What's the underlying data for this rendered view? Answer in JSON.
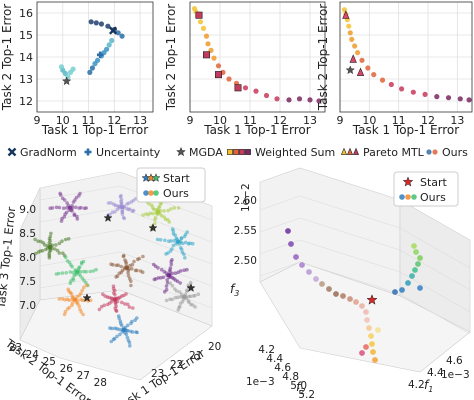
{
  "chart_data": [
    {
      "type": "scatter",
      "panel": "top-left",
      "xlabel": "Task 1 Top-1 Error",
      "ylabel": "Task 2 Top-1 Error",
      "xlim": [
        9,
        13.5
      ],
      "ylim": [
        11.5,
        16.5
      ],
      "xticks": [
        9,
        10,
        11,
        12,
        13
      ],
      "yticks": [
        12,
        13,
        14,
        15,
        16
      ],
      "grid": true,
      "series": [
        {
          "name": "GradNorm",
          "marker": "x",
          "color": "#17365c",
          "points": [
            [
              11.95,
              15.2
            ]
          ]
        },
        {
          "name": "Uncertainty",
          "marker": "plus",
          "color": "#2f6fa8",
          "points": [
            [
              11.45,
              14.1
            ]
          ]
        },
        {
          "name": "MGDA",
          "marker": "star",
          "color": "#555555",
          "points": [
            [
              10.15,
              12.9
            ]
          ]
        },
        {
          "name": "Ours",
          "marker": "circle",
          "colors": [
            "#1f3f6e",
            "#2a6fa6",
            "#3a93c7",
            "#58b6c8",
            "#76cfcf"
          ],
          "points": [
            [
              11.1,
              15.6
            ],
            [
              11.3,
              15.55
            ],
            [
              11.5,
              15.5
            ],
            [
              11.75,
              15.4
            ],
            [
              12.0,
              15.25
            ],
            [
              12.15,
              15.1
            ],
            [
              12.3,
              14.95
            ],
            [
              11.05,
              13.3
            ],
            [
              11.15,
              13.5
            ],
            [
              11.25,
              13.7
            ],
            [
              11.35,
              13.85
            ],
            [
              11.5,
              14.05
            ],
            [
              11.6,
              14.2
            ],
            [
              11.7,
              14.35
            ],
            [
              11.8,
              14.55
            ],
            [
              11.9,
              14.75
            ],
            [
              10.0,
              13.4
            ],
            [
              10.1,
              13.25
            ],
            [
              10.2,
              13.1
            ],
            [
              10.3,
              13.3
            ],
            [
              10.4,
              13.45
            ],
            [
              9.95,
              13.55
            ]
          ]
        }
      ]
    },
    {
      "type": "scatter",
      "panel": "top-middle",
      "xlabel": "Task 1 Top-1 Error",
      "xlim": [
        9,
        13.5
      ],
      "ylim": [
        11.5,
        16.5
      ],
      "xticks": [
        9,
        10,
        11,
        12,
        13
      ],
      "grid": true,
      "series": [
        {
          "name": "Weighted Sum",
          "marker": "square",
          "color": "#c23a5e",
          "points": [
            [
              9.3,
              15.9
            ],
            [
              9.55,
              14.1
            ],
            [
              9.95,
              13.2
            ],
            [
              10.6,
              12.6
            ]
          ]
        },
        {
          "name": "Ours",
          "marker": "circle",
          "colors": [
            "#f2c230",
            "#ef9a2a",
            "#e0633a",
            "#c83a5a",
            "#7a2860"
          ],
          "points": [
            [
              9.15,
              16.2
            ],
            [
              9.2,
              16.05
            ],
            [
              9.25,
              15.85
            ],
            [
              9.35,
              15.6
            ],
            [
              9.45,
              15.3
            ],
            [
              9.55,
              14.95
            ],
            [
              9.6,
              14.6
            ],
            [
              9.7,
              14.3
            ],
            [
              9.8,
              13.95
            ],
            [
              9.95,
              13.6
            ],
            [
              10.1,
              13.3
            ],
            [
              10.3,
              13.0
            ],
            [
              10.55,
              12.8
            ],
            [
              10.85,
              12.6
            ],
            [
              11.2,
              12.45
            ],
            [
              11.55,
              12.25
            ],
            [
              11.9,
              12.1
            ],
            [
              12.3,
              12.05
            ],
            [
              12.65,
              12.1
            ],
            [
              13.0,
              12.05
            ],
            [
              13.3,
              12.0
            ]
          ]
        }
      ]
    },
    {
      "type": "scatter",
      "panel": "top-right",
      "xlabel": "Task 1 Top-1 Error",
      "xlim": [
        9,
        13.5
      ],
      "ylim": [
        11.5,
        16.5
      ],
      "xticks": [
        9,
        10,
        11,
        12,
        13
      ],
      "grid": true,
      "series": [
        {
          "name": "Pareto MTL",
          "marker": "triangle",
          "color": "#e0446a",
          "points": [
            [
              9.2,
              15.9
            ],
            [
              9.45,
              13.9
            ],
            [
              9.7,
              13.3
            ]
          ]
        },
        {
          "name": "MGDA",
          "marker": "star",
          "color": "#555555",
          "points": [
            [
              9.35,
              13.4
            ]
          ]
        },
        {
          "name": "Ours",
          "marker": "circle",
          "colors": [
            "#f2c230",
            "#ef9a2a",
            "#e0633a",
            "#c83a5a",
            "#7a2860"
          ],
          "points": [
            [
              9.15,
              16.15
            ],
            [
              9.2,
              15.95
            ],
            [
              9.25,
              15.7
            ],
            [
              9.3,
              15.4
            ],
            [
              9.35,
              15.1
            ],
            [
              9.4,
              14.8
            ],
            [
              9.5,
              14.5
            ],
            [
              9.6,
              14.2
            ],
            [
              9.75,
              13.85
            ],
            [
              9.95,
              13.5
            ],
            [
              10.15,
              13.2
            ],
            [
              10.45,
              12.95
            ],
            [
              10.75,
              12.75
            ],
            [
              11.1,
              12.55
            ],
            [
              11.5,
              12.4
            ],
            [
              11.9,
              12.3
            ],
            [
              12.3,
              12.2
            ],
            [
              12.7,
              12.15
            ],
            [
              13.1,
              12.1
            ],
            [
              13.4,
              12.05
            ]
          ]
        }
      ]
    },
    {
      "type": "scatter",
      "panel": "bottom-left-3d",
      "xlabel": "Task 1 Top-1 Error",
      "ylabel": "Task 2 Top-1 Error",
      "zlabel": "Task 3 Top-1 Error",
      "xticks": [
        20,
        21,
        22,
        23
      ],
      "yticks": [
        23,
        24,
        25,
        26,
        27,
        28
      ],
      "zticks": [
        7.0,
        7.5,
        8.0,
        8.5,
        9.0
      ],
      "legend": [
        "Start",
        "Ours"
      ],
      "grid": true
    },
    {
      "type": "scatter",
      "panel": "bottom-right-3d",
      "xlabel": "f1",
      "ylabel": "f2",
      "zlabel": "f3",
      "xticks": [
        4.2,
        4.4,
        4.6
      ],
      "yticks": [
        4.2,
        4.4,
        4.6,
        4.8,
        5.0,
        5.2
      ],
      "zticks": [
        2.5,
        2.55,
        2.6
      ],
      "x_scale_note": "1e−3",
      "y_scale_note": "1e−3",
      "z_scale_note": "1e−2",
      "legend": [
        "Start",
        "Ours"
      ],
      "grid": true
    }
  ],
  "legend_row": [
    {
      "label": "GradNorm",
      "marker": "x",
      "color": "#17365c"
    },
    {
      "label": "Uncertainty",
      "marker": "plus",
      "color": "#2f6fa8"
    },
    {
      "label": "MGDA",
      "marker": "star",
      "color": "#555555"
    },
    {
      "label": "Weighted Sum",
      "marker": "squares",
      "colors": [
        "#f2c230",
        "#e0633a",
        "#c23a5e",
        "#7a2860"
      ]
    },
    {
      "label": "Pareto MTL",
      "marker": "triangles",
      "colors": [
        "#f2c230",
        "#e0633a",
        "#c23a5e"
      ]
    },
    {
      "label": "Ours",
      "marker": "circles",
      "colors": [
        "#2f6fa8",
        "#e0633a"
      ]
    }
  ],
  "legend_3d": {
    "start_label": "Start",
    "ours_label": "Ours"
  },
  "colors": {
    "start_star": "#d62728",
    "grid": "#e0e0e0",
    "pane": "#f2f2f2"
  }
}
